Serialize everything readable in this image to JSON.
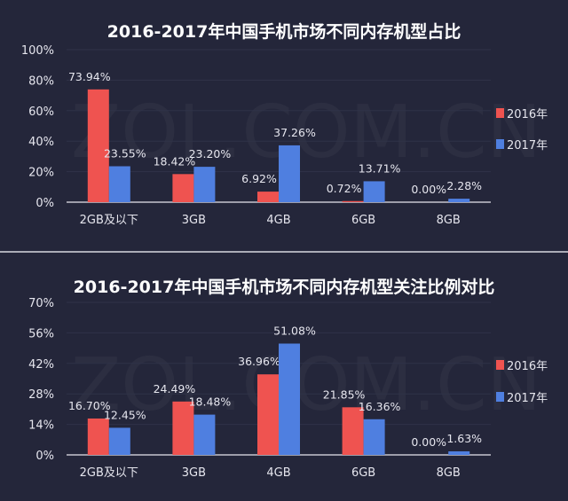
{
  "colors": {
    "background": "#24263a",
    "series_2016": "#ef5350",
    "series_2017": "#4f7fe0"
  },
  "watermark": "ZOL.COM.CN",
  "chart_data": [
    {
      "type": "bar",
      "title": "2016-2017年中国手机市场不同内存机型占比",
      "categories": [
        "2GB及以下",
        "3GB",
        "4GB",
        "6GB",
        "8GB"
      ],
      "yticks": [
        "0%",
        "20%",
        "40%",
        "60%",
        "80%",
        "100%"
      ],
      "ylim": [
        0,
        100
      ],
      "legend": "right",
      "series": [
        {
          "name": "2016年",
          "values": [
            73.94,
            18.42,
            6.92,
            0.72,
            0.0
          ],
          "labels": [
            "73.94%",
            "18.42%",
            "6.92%",
            "0.72%",
            "0.00%"
          ]
        },
        {
          "name": "2017年",
          "values": [
            23.55,
            23.2,
            37.26,
            13.71,
            2.28
          ],
          "labels": [
            "23.55%",
            "23.20%",
            "37.26%",
            "13.71%",
            "2.28%"
          ]
        }
      ]
    },
    {
      "type": "bar",
      "title": "2016-2017年中国手机市场不同内存机型关注比例对比",
      "categories": [
        "2GB及以下",
        "3GB",
        "4GB",
        "6GB",
        "8GB"
      ],
      "yticks": [
        "0%",
        "14%",
        "28%",
        "42%",
        "56%",
        "70%"
      ],
      "ylim": [
        0,
        70
      ],
      "legend": "right",
      "series": [
        {
          "name": "2016年",
          "values": [
            16.7,
            24.49,
            36.96,
            21.85,
            0.0
          ],
          "labels": [
            "16.70%",
            "24.49%",
            "36.96%",
            "21.85%",
            "0.00%"
          ]
        },
        {
          "name": "2017年",
          "values": [
            12.45,
            18.48,
            51.08,
            16.36,
            1.63
          ],
          "labels": [
            "12.45%",
            "18.48%",
            "51.08%",
            "16.36%",
            "1.63%"
          ]
        }
      ]
    }
  ]
}
